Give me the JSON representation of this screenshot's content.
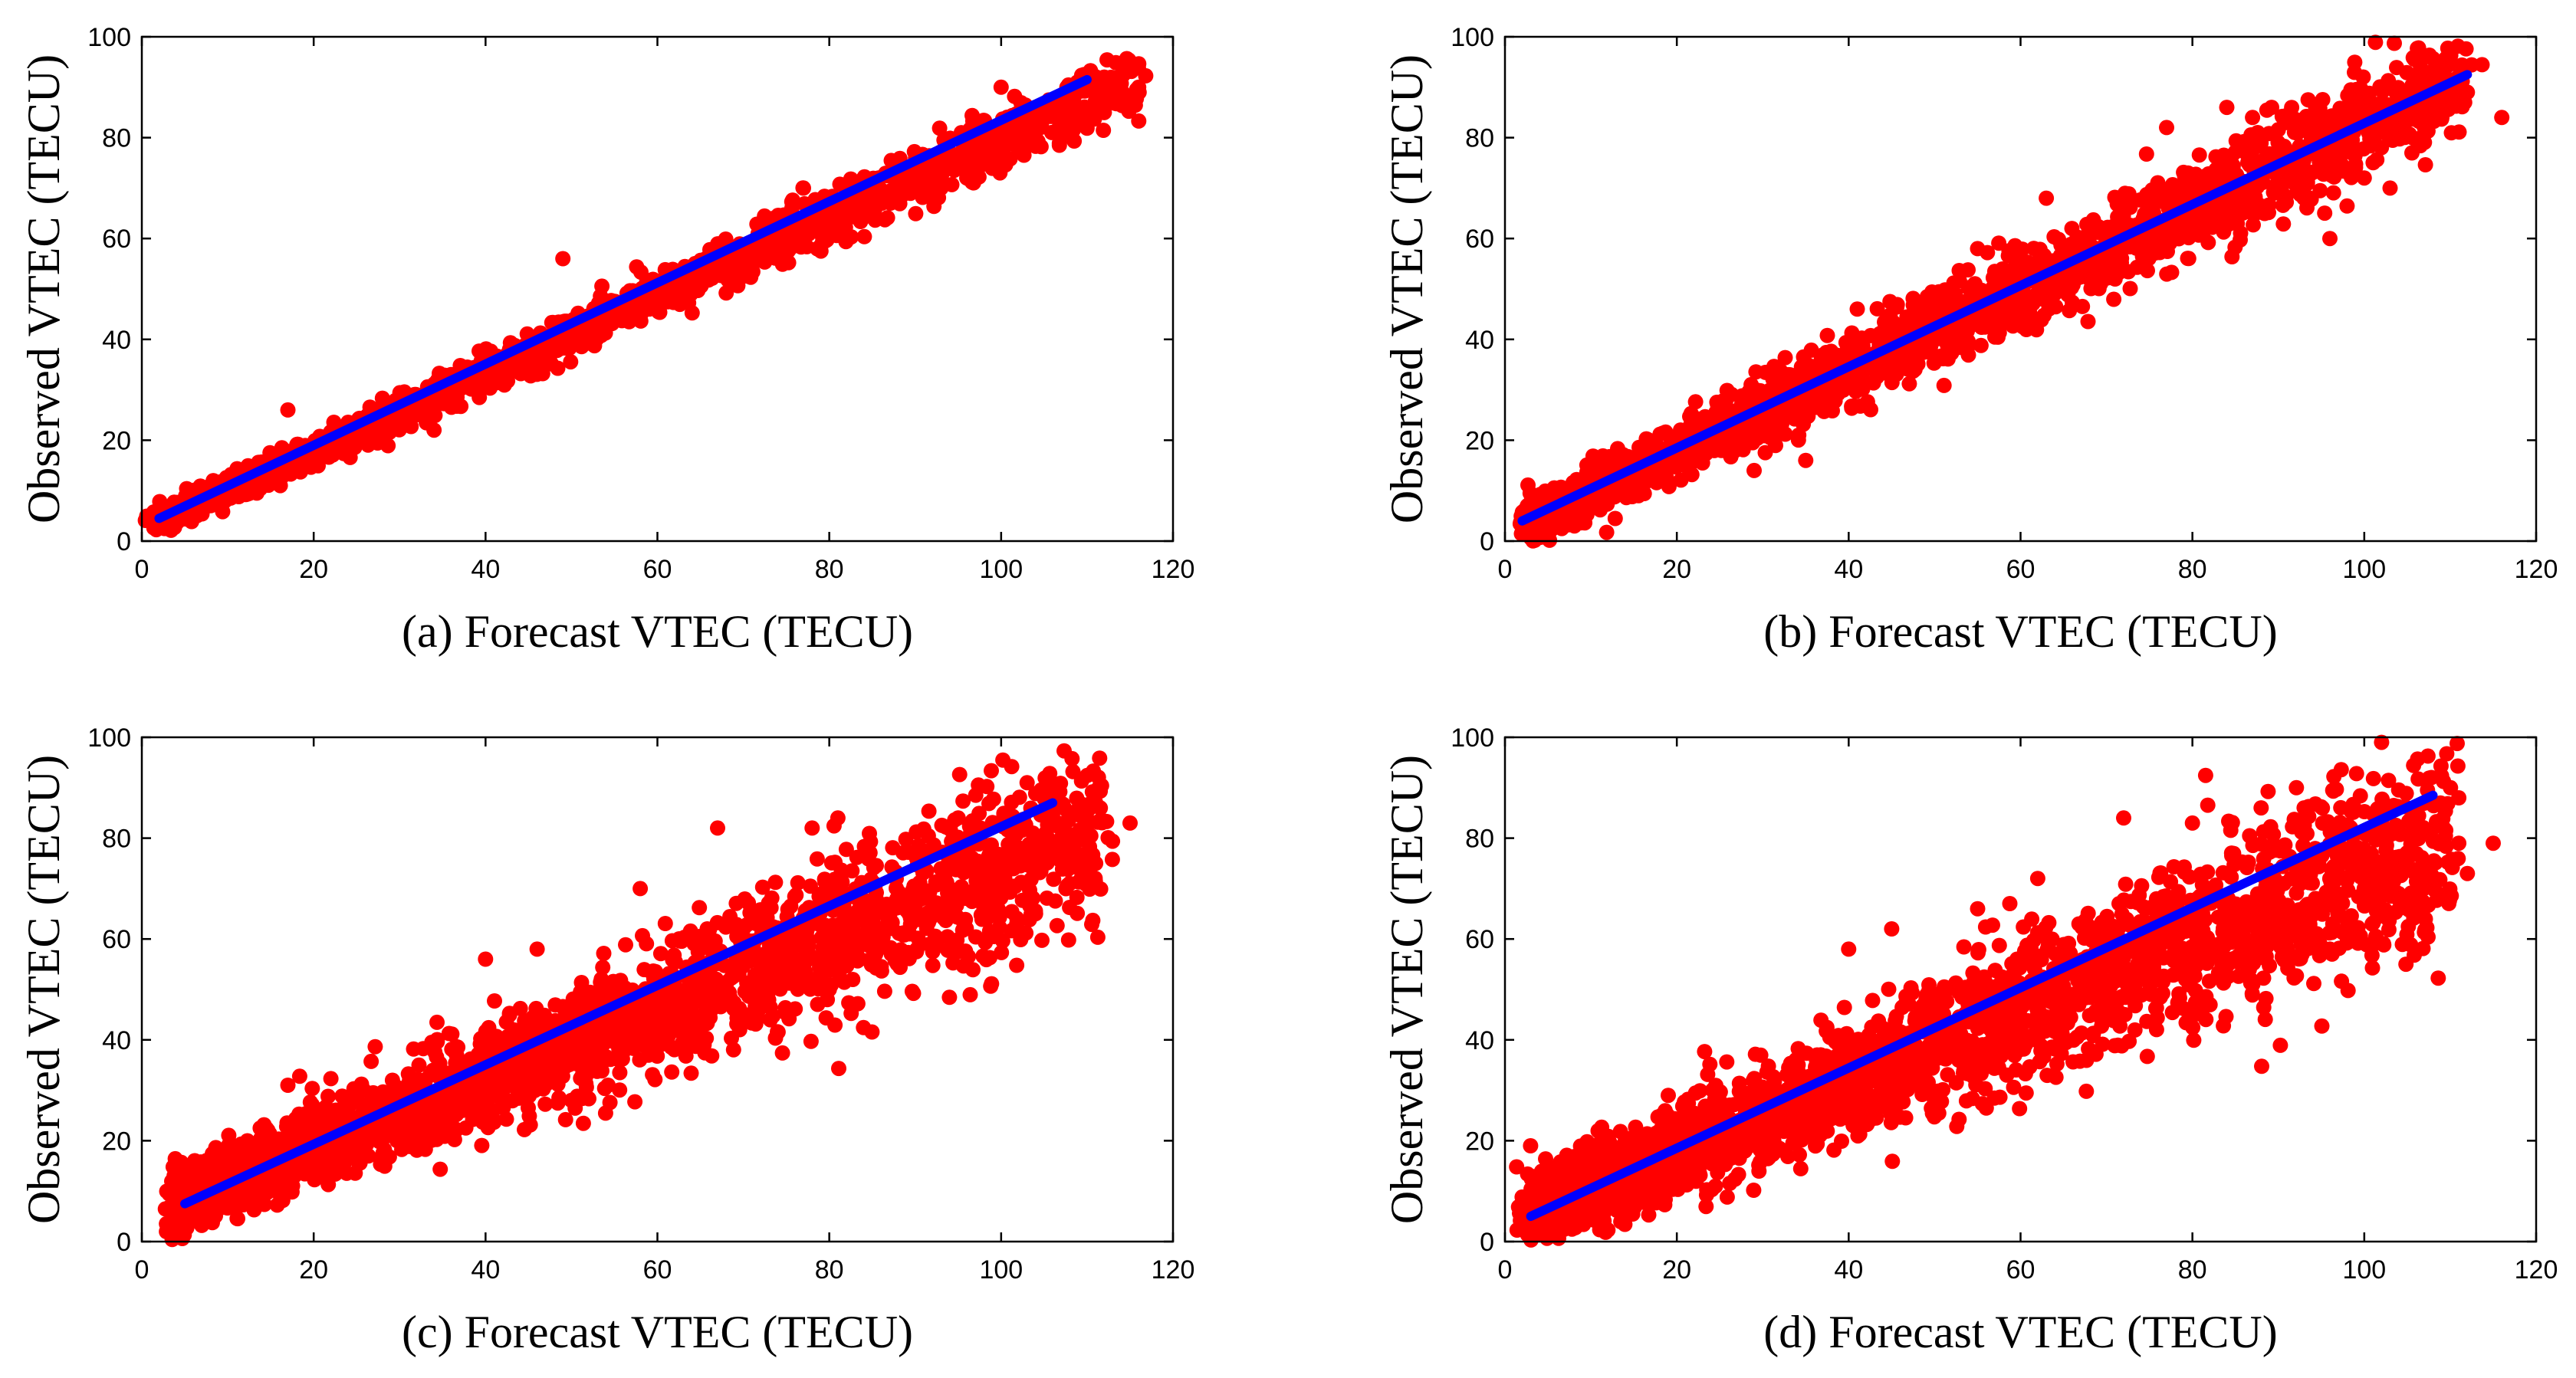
{
  "figure": {
    "description_colors": {
      "points": "#ff0000",
      "fit_line": "#0000ff",
      "axes": "#000000",
      "background": "#ffffff"
    }
  },
  "chart_data": [
    {
      "type": "scatter",
      "panel": "a",
      "title": "",
      "xlabel": "(a) Forecast VTEC (TECU)",
      "ylabel": "Observed VTEC (TECU)",
      "xlim": [
        0,
        120
      ],
      "ylim": [
        0,
        100
      ],
      "xticks": [
        0,
        20,
        40,
        60,
        80,
        100,
        120
      ],
      "yticks": [
        0,
        20,
        40,
        60,
        80,
        100
      ],
      "grid": false,
      "series": [
        {
          "name": "Observations",
          "kind": "points",
          "color": "#ff0000",
          "trend_from": [
            2,
            4
          ],
          "trend_to": [
            116,
            92
          ],
          "spread_tecu": 2.5,
          "count": 1800
        },
        {
          "name": "Linear fit",
          "kind": "line",
          "color": "#0000ff",
          "x": [
            2,
            110
          ],
          "y": [
            4.5,
            91.5
          ]
        }
      ],
      "outliers": [
        [
          112,
          92
        ],
        [
          116,
          90
        ],
        [
          112,
          85
        ],
        [
          108,
          88
        ],
        [
          104,
          86
        ],
        [
          100,
          90
        ],
        [
          98,
          78
        ],
        [
          104,
          80
        ],
        [
          102,
          78
        ],
        [
          96,
          72
        ],
        [
          93,
          70
        ],
        [
          77,
          70
        ],
        [
          49,
          56
        ],
        [
          34,
          22
        ],
        [
          17,
          26
        ]
      ]
    },
    {
      "type": "scatter",
      "panel": "b",
      "title": "",
      "xlabel": "(b) Forecast VTEC (TECU)",
      "ylabel": "Observed VTEC (TECU)",
      "xlim": [
        0,
        120
      ],
      "ylim": [
        0,
        100
      ],
      "xticks": [
        0,
        20,
        40,
        60,
        80,
        100,
        120
      ],
      "yticks": [
        0,
        20,
        40,
        60,
        80,
        100
      ],
      "grid": false,
      "series": [
        {
          "name": "Observations",
          "kind": "points",
          "color": "#ff0000",
          "trend_from": [
            3,
            4
          ],
          "trend_to": [
            112,
            92
          ],
          "spread_tecu": 4.5,
          "count": 2200
        },
        {
          "name": "Linear fit",
          "kind": "line",
          "color": "#0000ff",
          "x": [
            2,
            112
          ],
          "y": [
            4,
            92.5
          ]
        }
      ],
      "outliers": [
        [
          109,
          92
        ],
        [
          112,
          89
        ],
        [
          116,
          84
        ],
        [
          105,
          86
        ],
        [
          100,
          72
        ],
        [
          103,
          70
        ],
        [
          96,
          60
        ],
        [
          84,
          86
        ],
        [
          87,
          84
        ],
        [
          91,
          83
        ],
        [
          77,
          82
        ],
        [
          63,
          68
        ],
        [
          55,
          58
        ],
        [
          41,
          46
        ],
        [
          35,
          16
        ],
        [
          29,
          14
        ],
        [
          107,
          82
        ]
      ]
    },
    {
      "type": "scatter",
      "panel": "c",
      "title": "",
      "xlabel": "(c) Forecast VTEC (TECU)",
      "ylabel": "Observed VTEC (TECU)",
      "xlim": [
        0,
        120
      ],
      "ylim": [
        0,
        100
      ],
      "xticks": [
        0,
        20,
        40,
        60,
        80,
        100,
        120
      ],
      "yticks": [
        0,
        20,
        40,
        60,
        80,
        100
      ],
      "grid": false,
      "series": [
        {
          "name": "Observations",
          "kind": "points",
          "color": "#ff0000",
          "trend_from": [
            4,
            8
          ],
          "trend_to": [
            112,
            82
          ],
          "spread_tecu": 7,
          "count": 2600
        },
        {
          "name": "Linear fit",
          "kind": "line",
          "color": "#0000ff",
          "x": [
            5,
            106
          ],
          "y": [
            7.5,
            87
          ]
        }
      ],
      "outliers": [
        [
          111,
          87
        ],
        [
          115,
          83
        ],
        [
          111,
          75
        ],
        [
          104,
          65
        ],
        [
          107,
          80
        ],
        [
          94,
          70
        ],
        [
          90,
          66
        ],
        [
          78,
          82
        ],
        [
          81,
          84
        ],
        [
          67,
          82
        ],
        [
          58,
          70
        ],
        [
          46,
          58
        ],
        [
          40,
          56
        ],
        [
          17,
          31
        ],
        [
          80,
          50
        ],
        [
          70,
          62
        ],
        [
          50,
          28
        ],
        [
          95,
          84
        ]
      ]
    },
    {
      "type": "scatter",
      "panel": "d",
      "title": "",
      "xlabel": "(d) Forecast VTEC (TECU)",
      "ylabel": "Observed VTEC (TECU)",
      "xlim": [
        0,
        120
      ],
      "ylim": [
        0,
        100
      ],
      "xticks": [
        0,
        20,
        40,
        60,
        80,
        100,
        120
      ],
      "yticks": [
        0,
        20,
        40,
        60,
        80,
        100
      ],
      "grid": false,
      "series": [
        {
          "name": "Observations",
          "kind": "points",
          "color": "#ff0000",
          "trend_from": [
            3,
            6
          ],
          "trend_to": [
            110,
            80
          ],
          "spread_tecu": 8,
          "count": 2600
        },
        {
          "name": "Linear fit",
          "kind": "line",
          "color": "#0000ff",
          "x": [
            3,
            108
          ],
          "y": [
            5,
            88.5
          ]
        }
      ],
      "outliers": [
        [
          111,
          88
        ],
        [
          115,
          79
        ],
        [
          111,
          79
        ],
        [
          112,
          73
        ],
        [
          104,
          69
        ],
        [
          100,
          70
        ],
        [
          96,
          58
        ],
        [
          88,
          86
        ],
        [
          93,
          84
        ],
        [
          80,
          83
        ],
        [
          72,
          84
        ],
        [
          62,
          72
        ],
        [
          55,
          66
        ],
        [
          45,
          62
        ],
        [
          40,
          58
        ],
        [
          19,
          29
        ],
        [
          89,
          60
        ],
        [
          93,
          86
        ]
      ]
    }
  ]
}
